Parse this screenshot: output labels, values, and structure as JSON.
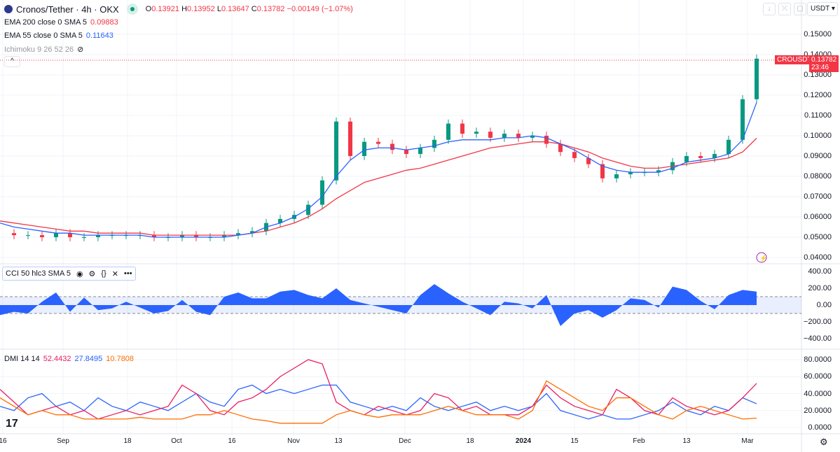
{
  "header": {
    "title": "Cronos/Tether · 4h · OKX",
    "open_label": "O",
    "open": "0.13921",
    "high_label": "H",
    "high": "0.13952",
    "low_label": "L",
    "low": "0.13647",
    "close_label": "C",
    "close": "0.13782",
    "change": "−0.00149 (−1.07%)"
  },
  "indicators": {
    "ema200_label": "EMA 200 close 0 SMA 5",
    "ema200_value": "0.09883",
    "ema55_label": "EMA 55 close 0 SMA 5",
    "ema55_value": "0.11643",
    "ichimoku_label": "Ichimoku 9 26 52 26",
    "cci_label": "CCI 50 hlc3 SMA 5",
    "dmi_label": "DMI 14 14",
    "dmi_minus": "52.4432",
    "dmi_plus": "27.8495",
    "dmi_adx": "10.7808"
  },
  "toolbar": {
    "currency": "USDT",
    "collapse": "^"
  },
  "price_tag": {
    "symbol": "CROUSDT",
    "price": "0.13782",
    "countdown": "23:46"
  },
  "axes": {
    "price": [
      "0.15000",
      "0.14000",
      "0.13000",
      "0.12000",
      "0.11000",
      "0.10000",
      "0.09000",
      "0.08000",
      "0.07000",
      "0.06000",
      "0.05000",
      "0.04000"
    ],
    "cci": [
      "400.00",
      "200.00",
      "0.00",
      "−200.00",
      "−400.00"
    ],
    "dmi": [
      "80.0000",
      "60.0000",
      "40.0000",
      "20.0000",
      "0.0000"
    ],
    "time": [
      "16",
      "Sep",
      "18",
      "Oct",
      "16",
      "Nov",
      "13",
      "Dec",
      "18",
      "2024",
      "15",
      "Feb",
      "13",
      "Mar"
    ]
  },
  "colors": {
    "up": "#089981",
    "down": "#f23645",
    "ema200": "#f23645",
    "ema55": "#2962ff",
    "cci": "#2962ff",
    "dmi_plus": "#2962ff",
    "dmi_minus": "#e91e63",
    "adx": "#ff6d00"
  },
  "chart_data": [
    {
      "type": "line",
      "title": "Cronos/Tether 4h price",
      "ylim": [
        0.04,
        0.15
      ],
      "series": [
        {
          "name": "close",
          "values": [
            0.052,
            0.051,
            0.051,
            0.05,
            0.052,
            0.05,
            0.05,
            0.051,
            0.051,
            0.051,
            0.051,
            0.05,
            0.05,
            0.051,
            0.05,
            0.05,
            0.051,
            0.052,
            0.053,
            0.057,
            0.059,
            0.061,
            0.066,
            0.078,
            0.107,
            0.09,
            0.097,
            0.096,
            0.093,
            0.091,
            0.094,
            0.098,
            0.106,
            0.101,
            0.102,
            0.099,
            0.101,
            0.099,
            0.1,
            0.096,
            0.092,
            0.089,
            0.086,
            0.079,
            0.081,
            0.082,
            0.082,
            0.083,
            0.087,
            0.09,
            0.089,
            0.091,
            0.098,
            0.118,
            0.138
          ]
        },
        {
          "name": "EMA 200",
          "values": [
            0.058,
            0.057,
            0.056,
            0.055,
            0.054,
            0.053,
            0.053,
            0.052,
            0.052,
            0.052,
            0.052,
            0.051,
            0.051,
            0.051,
            0.051,
            0.051,
            0.051,
            0.051,
            0.052,
            0.053,
            0.055,
            0.057,
            0.06,
            0.064,
            0.069,
            0.073,
            0.077,
            0.079,
            0.081,
            0.083,
            0.084,
            0.086,
            0.088,
            0.09,
            0.092,
            0.094,
            0.095,
            0.096,
            0.097,
            0.097,
            0.096,
            0.094,
            0.092,
            0.089,
            0.087,
            0.085,
            0.084,
            0.084,
            0.085,
            0.086,
            0.087,
            0.088,
            0.089,
            0.092,
            0.0988
          ]
        },
        {
          "name": "EMA 55",
          "values": [
            0.057,
            0.055,
            0.054,
            0.053,
            0.052,
            0.052,
            0.051,
            0.051,
            0.051,
            0.051,
            0.051,
            0.05,
            0.05,
            0.05,
            0.05,
            0.05,
            0.05,
            0.051,
            0.052,
            0.055,
            0.057,
            0.06,
            0.064,
            0.07,
            0.08,
            0.088,
            0.093,
            0.094,
            0.094,
            0.093,
            0.094,
            0.095,
            0.097,
            0.098,
            0.098,
            0.098,
            0.099,
            0.099,
            0.1,
            0.099,
            0.096,
            0.093,
            0.089,
            0.085,
            0.083,
            0.082,
            0.082,
            0.082,
            0.084,
            0.087,
            0.088,
            0.089,
            0.091,
            0.098,
            0.1164
          ]
        }
      ]
    },
    {
      "type": "area",
      "title": "CCI 50",
      "ylim": [
        -400,
        400
      ],
      "bands": [
        -100,
        100
      ],
      "values": [
        -120,
        -80,
        -100,
        40,
        150,
        -80,
        90,
        -60,
        -40,
        40,
        -30,
        -100,
        -70,
        60,
        -80,
        -120,
        100,
        150,
        80,
        80,
        160,
        180,
        120,
        80,
        200,
        60,
        20,
        -20,
        -60,
        -100,
        120,
        250,
        140,
        40,
        -40,
        -120,
        40,
        20,
        -40,
        120,
        -250,
        -100,
        -60,
        -150,
        -60,
        80,
        60,
        -30,
        220,
        180,
        50,
        -50,
        120,
        180,
        160
      ]
    },
    {
      "type": "line",
      "title": "DMI 14 14",
      "ylim": [
        0,
        80
      ],
      "series": [
        {
          "name": "+DI",
          "values": [
            25,
            20,
            35,
            40,
            25,
            30,
            20,
            35,
            25,
            20,
            30,
            25,
            20,
            30,
            40,
            30,
            25,
            45,
            50,
            40,
            45,
            40,
            45,
            50,
            50,
            30,
            25,
            20,
            25,
            20,
            35,
            25,
            20,
            25,
            30,
            20,
            25,
            20,
            25,
            40,
            20,
            15,
            10,
            15,
            10,
            10,
            15,
            20,
            30,
            20,
            15,
            25,
            20,
            35,
            28
          ]
        },
        {
          "name": "-DI",
          "values": [
            45,
            30,
            15,
            20,
            25,
            15,
            20,
            10,
            15,
            20,
            15,
            20,
            25,
            50,
            40,
            20,
            15,
            30,
            35,
            45,
            60,
            70,
            80,
            75,
            30,
            20,
            15,
            25,
            20,
            15,
            20,
            40,
            35,
            20,
            25,
            15,
            15,
            15,
            25,
            50,
            35,
            25,
            20,
            15,
            45,
            35,
            20,
            15,
            35,
            25,
            20,
            15,
            20,
            35,
            52
          ]
        },
        {
          "name": "ADX",
          "values": [
            35,
            25,
            15,
            20,
            15,
            15,
            10,
            10,
            10,
            10,
            12,
            10,
            10,
            10,
            15,
            15,
            20,
            15,
            10,
            8,
            5,
            5,
            5,
            5,
            15,
            20,
            15,
            12,
            15,
            15,
            15,
            20,
            25,
            20,
            15,
            15,
            15,
            10,
            20,
            55,
            45,
            35,
            25,
            20,
            35,
            35,
            25,
            15,
            10,
            20,
            25,
            20,
            15,
            10,
            11
          ]
        }
      ]
    }
  ]
}
